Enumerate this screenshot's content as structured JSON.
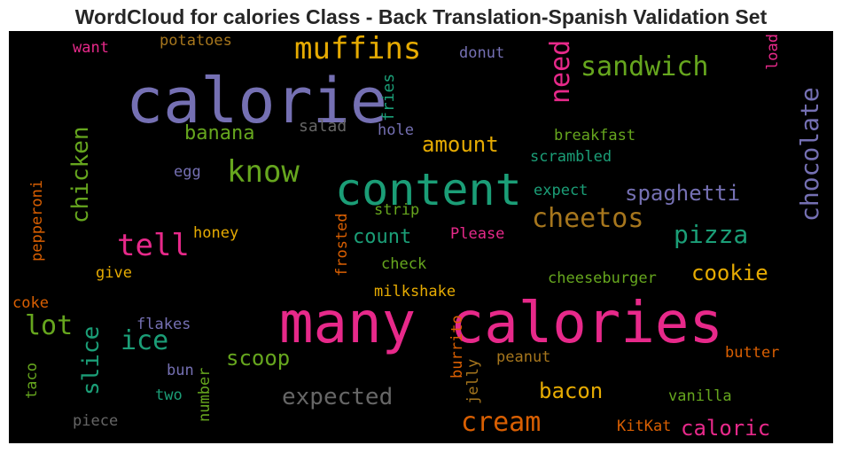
{
  "chart_data": {
    "type": "wordcloud",
    "title": "WordCloud for calories Class - Back Translation-Spanish Validation Set",
    "background": "#000000",
    "words": [
      {
        "text": "calorie",
        "color": "#7570b3",
        "weight": 70
      },
      {
        "text": "many calories",
        "color": "#e7298a",
        "weight": 64
      },
      {
        "text": "content",
        "color": "#1b9e77",
        "weight": 50
      },
      {
        "text": "muffins",
        "color": "#e6ab02",
        "weight": 34
      },
      {
        "text": "know",
        "color": "#66a61e",
        "weight": 34
      },
      {
        "text": "tell",
        "color": "#e7298a",
        "weight": 34
      },
      {
        "text": "sandwich",
        "color": "#66a61e",
        "weight": 30
      },
      {
        "text": "need",
        "color": "#e7298a",
        "weight": 30
      },
      {
        "text": "chocolate",
        "color": "#7570b3",
        "weight": 28
      },
      {
        "text": "cheetos",
        "color": "#a6761d",
        "weight": 30
      },
      {
        "text": "cream",
        "color": "#d95f02",
        "weight": 30
      },
      {
        "text": "lot",
        "color": "#66a61e",
        "weight": 30
      },
      {
        "text": "ice",
        "color": "#1b9e77",
        "weight": 30
      },
      {
        "text": "pizza",
        "color": "#1b9e77",
        "weight": 28
      },
      {
        "text": "chicken",
        "color": "#66a61e",
        "weight": 26
      },
      {
        "text": "slice",
        "color": "#1b9e77",
        "weight": 26
      },
      {
        "text": "expected",
        "color": "#666666",
        "weight": 26
      },
      {
        "text": "spaghetti",
        "color": "#7570b3",
        "weight": 24
      },
      {
        "text": "amount",
        "color": "#e6ab02",
        "weight": 24
      },
      {
        "text": "scoop",
        "color": "#66a61e",
        "weight": 24
      },
      {
        "text": "bacon",
        "color": "#e6ab02",
        "weight": 24
      },
      {
        "text": "cookie",
        "color": "#e6ab02",
        "weight": 24
      },
      {
        "text": "caloric",
        "color": "#e7298a",
        "weight": 24
      },
      {
        "text": "banana",
        "color": "#66a61e",
        "weight": 22
      },
      {
        "text": "count",
        "color": "#1b9e77",
        "weight": 22
      },
      {
        "text": "fries",
        "color": "#1b9e77",
        "weight": 18
      },
      {
        "text": "salad",
        "color": "#666666",
        "weight": 18
      },
      {
        "text": "hole",
        "color": "#7570b3",
        "weight": 17
      },
      {
        "text": "breakfast",
        "color": "#66a61e",
        "weight": 17
      },
      {
        "text": "scrambled",
        "color": "#1b9e77",
        "weight": 17
      },
      {
        "text": "egg",
        "color": "#7570b3",
        "weight": 17
      },
      {
        "text": "expect",
        "color": "#1b9e77",
        "weight": 17
      },
      {
        "text": "strip",
        "color": "#66a61e",
        "weight": 17
      },
      {
        "text": "frosted",
        "color": "#d95f02",
        "weight": 17
      },
      {
        "text": "honey",
        "color": "#e6ab02",
        "weight": 17
      },
      {
        "text": "Please",
        "color": "#e7298a",
        "weight": 17
      },
      {
        "text": "check",
        "color": "#66a61e",
        "weight": 17
      },
      {
        "text": "give",
        "color": "#e6ab02",
        "weight": 17
      },
      {
        "text": "milkshake",
        "color": "#e6ab02",
        "weight": 17
      },
      {
        "text": "cheeseburger",
        "color": "#66a61e",
        "weight": 17
      },
      {
        "text": "pepperoni",
        "color": "#d95f02",
        "weight": 17
      },
      {
        "text": "coke",
        "color": "#d95f02",
        "weight": 17
      },
      {
        "text": "flakes",
        "color": "#7570b3",
        "weight": 17
      },
      {
        "text": "burrito",
        "color": "#d95f02",
        "weight": 17
      },
      {
        "text": "jelly",
        "color": "#a6761d",
        "weight": 17
      },
      {
        "text": "peanut",
        "color": "#a6761d",
        "weight": 17
      },
      {
        "text": "butter",
        "color": "#d95f02",
        "weight": 17
      },
      {
        "text": "bun",
        "color": "#7570b3",
        "weight": 17
      },
      {
        "text": "two",
        "color": "#1b9e77",
        "weight": 17
      },
      {
        "text": "number",
        "color": "#66a61e",
        "weight": 17
      },
      {
        "text": "taco",
        "color": "#66a61e",
        "weight": 17
      },
      {
        "text": "vanilla",
        "color": "#66a61e",
        "weight": 17
      },
      {
        "text": "piece",
        "color": "#666666",
        "weight": 17
      },
      {
        "text": "KitKat",
        "color": "#d95f02",
        "weight": 17
      },
      {
        "text": "want",
        "color": "#e7298a",
        "weight": 17
      },
      {
        "text": "potatoes",
        "color": "#a6761d",
        "weight": 17
      },
      {
        "text": "donut",
        "color": "#7570b3",
        "weight": 17
      },
      {
        "text": "load",
        "color": "#e7298a",
        "weight": 17
      }
    ]
  }
}
